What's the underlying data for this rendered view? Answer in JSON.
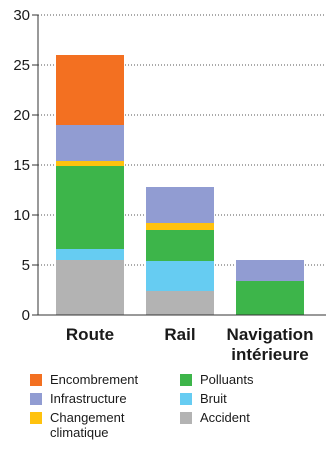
{
  "chart_data": {
    "type": "bar",
    "stacked": true,
    "categories": [
      "Route",
      "Rail",
      "Navigation intérieure"
    ],
    "category_lines": [
      [
        "Route"
      ],
      [
        "Rail"
      ],
      [
        "Navigation",
        "intérieure"
      ]
    ],
    "ylim": [
      0,
      30
    ],
    "yticks": [
      0,
      5,
      10,
      15,
      20,
      25,
      30
    ],
    "grid": "dotted horizontal",
    "legend_placement": "bottom",
    "series": [
      {
        "name": "Accident",
        "color": "#b3b3b3",
        "values": [
          5.5,
          2.4,
          0
        ]
      },
      {
        "name": "Bruit",
        "color": "#66ccf2",
        "values": [
          1.1,
          3.0,
          0
        ]
      },
      {
        "name": "Polluants",
        "color": "#3db54a",
        "values": [
          8.3,
          3.1,
          3.4
        ]
      },
      {
        "name": "Changement climatique",
        "color": "#ffc20e",
        "values": [
          0.5,
          0.7,
          0
        ]
      },
      {
        "name": "Infrastructure",
        "color": "#919cd2",
        "values": [
          3.6,
          3.6,
          2.1
        ]
      },
      {
        "name": "Encombrement",
        "color": "#f37021",
        "values": [
          7.0,
          0,
          0
        ]
      }
    ]
  },
  "legend": [
    {
      "label": "Encombrement",
      "color": "#f37021"
    },
    {
      "label": "Polluants",
      "color": "#3db54a"
    },
    {
      "label": "Infrastructure",
      "color": "#919cd2"
    },
    {
      "label": "Bruit",
      "color": "#66ccf2"
    },
    {
      "label": "Changement climatique",
      "color": "#ffc20e"
    },
    {
      "label": "Accident",
      "color": "#b3b3b3"
    }
  ]
}
